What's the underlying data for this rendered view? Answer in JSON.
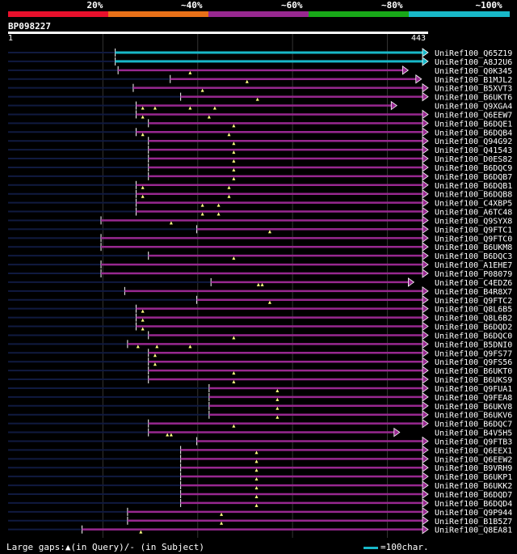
{
  "header": {
    "segments": [
      {
        "label": "20%",
        "color": "#e8102c"
      },
      {
        "label": "~40%",
        "color": "#e87018"
      },
      {
        "label": "~60%",
        "color": "#982890"
      },
      {
        "label": "~80%",
        "color": "#18a818"
      },
      {
        "label": "~100%",
        "color": "#18b8c8"
      }
    ]
  },
  "query": {
    "name": "BP098227",
    "start": "1",
    "end": "443",
    "length": 443
  },
  "colors": {
    "hit_fill": "#982890",
    "hit_best": "#18b8c8",
    "unaligned": "#101a40",
    "marker": "#ffff80"
  },
  "hits": [
    {
      "name": "UniRef100_Q65Z19",
      "start": 113,
      "end": 443,
      "arrow": true,
      "best": true,
      "markers": []
    },
    {
      "name": "UniRef100_A8J2U6",
      "start": 113,
      "end": 443,
      "arrow": true,
      "best": true,
      "markers": []
    },
    {
      "name": "UniRef100_Q0K345",
      "start": 116,
      "end": 422,
      "arrow": true,
      "best": false,
      "markers": [
        192
      ]
    },
    {
      "name": "UniRef100_B1MJL2",
      "start": 171,
      "end": 436,
      "arrow": true,
      "best": false,
      "markers": [
        252
      ]
    },
    {
      "name": "UniRef100_B5XVT3",
      "start": 132,
      "end": 443,
      "arrow": true,
      "best": false,
      "markers": [
        205
      ]
    },
    {
      "name": "UniRef100_B6UKT6",
      "start": 182,
      "end": 443,
      "arrow": true,
      "best": false,
      "markers": [
        263
      ]
    },
    {
      "name": "UniRef100_Q9XGA4",
      "start": 135,
      "end": 410,
      "arrow": true,
      "best": false,
      "markers": [
        142,
        155,
        192,
        218
      ]
    },
    {
      "name": "UniRef100_Q6EEW7",
      "start": 135,
      "end": 443,
      "arrow": true,
      "best": false,
      "markers": [
        142,
        212
      ]
    },
    {
      "name": "UniRef100_B6DQE1",
      "start": 148,
      "end": 443,
      "arrow": true,
      "best": false,
      "markers": [
        238
      ]
    },
    {
      "name": "UniRef100_B6DQB4",
      "start": 135,
      "end": 443,
      "arrow": true,
      "best": false,
      "markers": [
        142,
        233
      ]
    },
    {
      "name": "UniRef100_Q94G92",
      "start": 148,
      "end": 443,
      "arrow": true,
      "best": false,
      "markers": [
        238
      ]
    },
    {
      "name": "UniRef100_Q41543",
      "start": 148,
      "end": 443,
      "arrow": true,
      "best": false,
      "markers": [
        238
      ]
    },
    {
      "name": "UniRef100_D0ES82",
      "start": 148,
      "end": 443,
      "arrow": true,
      "best": false,
      "markers": [
        238
      ]
    },
    {
      "name": "UniRef100_B6DQC9",
      "start": 148,
      "end": 443,
      "arrow": true,
      "best": false,
      "markers": [
        238
      ]
    },
    {
      "name": "UniRef100_B6DQB7",
      "start": 148,
      "end": 443,
      "arrow": true,
      "best": false,
      "markers": [
        238
      ]
    },
    {
      "name": "UniRef100_B6DQB1",
      "start": 135,
      "end": 443,
      "arrow": true,
      "best": false,
      "markers": [
        142,
        233
      ]
    },
    {
      "name": "UniRef100_B6DQB8",
      "start": 135,
      "end": 443,
      "arrow": true,
      "best": false,
      "markers": [
        142,
        233
      ]
    },
    {
      "name": "UniRef100_C4XBP5",
      "start": 135,
      "end": 443,
      "arrow": true,
      "best": false,
      "markers": [
        205,
        222
      ]
    },
    {
      "name": "UniRef100_A6TC48",
      "start": 135,
      "end": 443,
      "arrow": true,
      "best": false,
      "markers": [
        205,
        222
      ]
    },
    {
      "name": "UniRef100_Q9SYX8",
      "start": 98,
      "end": 443,
      "arrow": true,
      "best": false,
      "markers": [
        172
      ]
    },
    {
      "name": "UniRef100_Q9FTC1",
      "start": 199,
      "end": 443,
      "arrow": true,
      "best": false,
      "markers": [
        276
      ]
    },
    {
      "name": "UniRef100_Q9FTC0",
      "start": 98,
      "end": 443,
      "arrow": true,
      "best": false,
      "markers": []
    },
    {
      "name": "UniRef100_B6UKM8",
      "start": 98,
      "end": 443,
      "arrow": true,
      "best": false,
      "markers": []
    },
    {
      "name": "UniRef100_B6DQC3",
      "start": 148,
      "end": 443,
      "arrow": true,
      "best": false,
      "markers": [
        238
      ]
    },
    {
      "name": "UniRef100_A1EHE7",
      "start": 98,
      "end": 443,
      "arrow": true,
      "best": false,
      "markers": []
    },
    {
      "name": "UniRef100_P08079",
      "start": 98,
      "end": 443,
      "arrow": true,
      "best": false,
      "markers": []
    },
    {
      "name": "UniRef100_C4EDZ6",
      "start": 214,
      "end": 428,
      "arrow": true,
      "best": false,
      "markers": [
        264,
        268
      ]
    },
    {
      "name": "UniRef100_B4R8X7",
      "start": 123,
      "end": 443,
      "arrow": true,
      "best": false,
      "markers": []
    },
    {
      "name": "UniRef100_Q9FTC2",
      "start": 199,
      "end": 443,
      "arrow": true,
      "best": false,
      "markers": [
        276
      ]
    },
    {
      "name": "UniRef100_Q8L6B5",
      "start": 135,
      "end": 443,
      "arrow": true,
      "best": false,
      "markers": [
        142
      ]
    },
    {
      "name": "UniRef100_Q8L6B2",
      "start": 135,
      "end": 443,
      "arrow": true,
      "best": false,
      "markers": [
        142
      ]
    },
    {
      "name": "UniRef100_B6DQD2",
      "start": 135,
      "end": 443,
      "arrow": true,
      "best": false,
      "markers": [
        142
      ]
    },
    {
      "name": "UniRef100_B6DQC0",
      "start": 148,
      "end": 443,
      "arrow": true,
      "best": false,
      "markers": [
        238
      ]
    },
    {
      "name": "UniRef100_B5DNI0",
      "start": 126,
      "end": 443,
      "arrow": true,
      "best": false,
      "markers": [
        137,
        157,
        192
      ]
    },
    {
      "name": "UniRef100_Q9FS77",
      "start": 148,
      "end": 443,
      "arrow": true,
      "best": false,
      "markers": [
        155
      ]
    },
    {
      "name": "UniRef100_Q9FS56",
      "start": 148,
      "end": 443,
      "arrow": true,
      "best": false,
      "markers": [
        155
      ]
    },
    {
      "name": "UniRef100_B6UKT0",
      "start": 148,
      "end": 443,
      "arrow": true,
      "best": false,
      "markers": [
        238
      ]
    },
    {
      "name": "UniRef100_B6UKS9",
      "start": 148,
      "end": 443,
      "arrow": true,
      "best": false,
      "markers": [
        238
      ]
    },
    {
      "name": "UniRef100_Q9FUA1",
      "start": 212,
      "end": 443,
      "arrow": true,
      "best": false,
      "markers": [
        284
      ]
    },
    {
      "name": "UniRef100_Q9FEA8",
      "start": 212,
      "end": 443,
      "arrow": true,
      "best": false,
      "markers": [
        284
      ]
    },
    {
      "name": "UniRef100_B6UKV8",
      "start": 212,
      "end": 443,
      "arrow": true,
      "best": false,
      "markers": [
        284
      ]
    },
    {
      "name": "UniRef100_B6UKV6",
      "start": 212,
      "end": 443,
      "arrow": true,
      "best": false,
      "markers": [
        284
      ]
    },
    {
      "name": "UniRef100_B6DQC7",
      "start": 148,
      "end": 443,
      "arrow": true,
      "best": false,
      "markers": [
        238
      ]
    },
    {
      "name": "UniRef100_B4V5H5",
      "start": 148,
      "end": 413,
      "arrow": true,
      "best": false,
      "markers": [
        168,
        172
      ]
    },
    {
      "name": "UniRef100_Q9FTB3",
      "start": 199,
      "end": 443,
      "arrow": true,
      "best": false,
      "markers": []
    },
    {
      "name": "UniRef100_Q6EEX1",
      "start": 182,
      "end": 443,
      "arrow": true,
      "best": false,
      "markers": [
        262
      ]
    },
    {
      "name": "UniRef100_Q6EEW2",
      "start": 182,
      "end": 443,
      "arrow": true,
      "best": false,
      "markers": [
        262
      ]
    },
    {
      "name": "UniRef100_B9VRH9",
      "start": 182,
      "end": 443,
      "arrow": true,
      "best": false,
      "markers": [
        262
      ]
    },
    {
      "name": "UniRef100_B6UKP1",
      "start": 182,
      "end": 443,
      "arrow": true,
      "best": false,
      "markers": [
        262
      ]
    },
    {
      "name": "UniRef100_B6UKK2",
      "start": 182,
      "end": 443,
      "arrow": true,
      "best": false,
      "markers": [
        262
      ]
    },
    {
      "name": "UniRef100_B6DQD7",
      "start": 182,
      "end": 443,
      "arrow": true,
      "best": false,
      "markers": [
        262
      ]
    },
    {
      "name": "UniRef100_B6DQD4",
      "start": 182,
      "end": 443,
      "arrow": true,
      "best": false,
      "markers": [
        262
      ]
    },
    {
      "name": "UniRef100_Q9P944",
      "start": 126,
      "end": 443,
      "arrow": true,
      "best": false,
      "markers": [
        225
      ]
    },
    {
      "name": "UniRef100_B1B5Z7",
      "start": 126,
      "end": 443,
      "arrow": true,
      "best": false,
      "markers": [
        225
      ]
    },
    {
      "name": "UniRef100_Q8EA81",
      "start": 78,
      "end": 443,
      "arrow": true,
      "best": false,
      "markers": [
        140
      ]
    }
  ],
  "footer": {
    "gaps_text": "Large gaps:▲(in Query)/- (in Subject)",
    "scale_text": "=100char."
  }
}
